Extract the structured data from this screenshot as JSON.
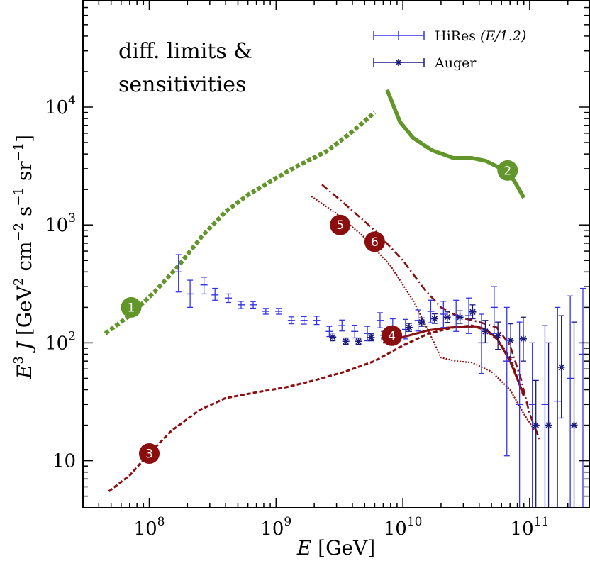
{
  "chart_data": {
    "type": "line",
    "xlabel": "E [GeV]",
    "ylabel": "E³ J [GeV² cm⁻² s⁻¹ sr⁻¹]",
    "x_scale": "log",
    "y_scale": "log",
    "xlim": [
      30000000,
      300000000000
    ],
    "ylim": [
      4,
      70000
    ],
    "x_ticks": [
      {
        "value": 100000000,
        "base": "10",
        "exp": "8"
      },
      {
        "value": 1000000000,
        "base": "10",
        "exp": "9"
      },
      {
        "value": 10000000000,
        "base": "10",
        "exp": "10"
      },
      {
        "value": 100000000000,
        "base": "10",
        "exp": "11"
      }
    ],
    "y_ticks": [
      {
        "value": 10,
        "base": "10",
        "exp": ""
      },
      {
        "value": 100,
        "base": "10",
        "exp": "2"
      },
      {
        "value": 1000,
        "base": "10",
        "exp": "3"
      },
      {
        "value": 10000,
        "base": "10",
        "exp": "4"
      }
    ],
    "annotation": [
      "diff. limits &",
      "sensitivities"
    ],
    "legend": {
      "placement": "top-right",
      "entries": [
        {
          "label_main": "HiRes ",
          "label_math": "(E/1.2)",
          "color": "#3333ee",
          "marker": "plus"
        },
        {
          "label_main": "Auger",
          "label_math": "",
          "color": "#1a1a80",
          "marker": "star"
        }
      ]
    },
    "curves": [
      {
        "id": "1",
        "color": "#62952a",
        "style": "dotted-thick",
        "x": [
          45000000,
          70000000,
          110000000,
          170000000,
          260000000,
          400000000,
          600000000,
          1000000000,
          1500000000,
          2500000000,
          4000000000,
          6000000000
        ],
        "y": [
          120,
          170,
          270,
          450,
          800,
          1300,
          1800,
          2500,
          3200,
          4200,
          6200,
          9000
        ]
      },
      {
        "id": "2",
        "color": "#62952a",
        "style": "solid-thick",
        "x": [
          7500000000,
          9500000000,
          12000000000,
          17000000000,
          25000000000,
          35000000000,
          45000000000,
          60000000000,
          75000000000,
          90000000000
        ],
        "y": [
          14000,
          7500,
          5500,
          4300,
          3700,
          3700,
          3500,
          3000,
          2400,
          1700
        ]
      },
      {
        "id": "3",
        "color": "#8b0e0e",
        "style": "dashed",
        "x": [
          48000000,
          70000000,
          100000000,
          150000000,
          250000000,
          400000000,
          700000000,
          1200000000,
          2000000000,
          3500000000,
          6000000000,
          10000000000,
          16000000000,
          25000000000,
          35000000000,
          45000000000,
          55000000000,
          70000000000,
          90000000000
        ],
        "y": [
          5.5,
          7.5,
          11.5,
          18,
          27,
          34,
          38,
          42,
          48,
          57,
          70,
          95,
          120,
          135,
          140,
          128,
          108,
          75,
          35
        ]
      },
      {
        "id": "4",
        "color": "#8b0e0e",
        "style": "solid",
        "x": [
          7000000000,
          9000000000,
          12000000000,
          16000000000,
          22000000000,
          30000000000,
          38000000000,
          45000000000,
          55000000000,
          70000000000,
          90000000000
        ],
        "y": [
          100,
          108,
          118,
          128,
          134,
          137,
          138,
          130,
          110,
          70,
          36
        ]
      },
      {
        "id": "5",
        "color": "#8b0e0e",
        "style": "dotted",
        "x": [
          1900000000,
          3000000000,
          5000000000,
          8000000000,
          12000000000,
          16000000000,
          20000000000,
          26000000000,
          35000000000,
          50000000000,
          70000000000,
          90000000000,
          110000000000
        ],
        "y": [
          1750,
          1250,
          780,
          450,
          230,
          125,
          75,
          70,
          68,
          57,
          40,
          25,
          18
        ]
      },
      {
        "id": "6",
        "color": "#8b0e0e",
        "style": "dashdot",
        "x": [
          2300000000,
          3500000000,
          6000000000,
          10000000000,
          15000000000,
          20000000000,
          28000000000,
          40000000000,
          55000000000,
          70000000000,
          85000000000,
          100000000000,
          120000000000
        ],
        "y": [
          2200,
          1500,
          900,
          500,
          280,
          200,
          165,
          150,
          135,
          95,
          50,
          25,
          15
        ]
      }
    ],
    "curve_markers": [
      {
        "label": "1",
        "x": 72000000,
        "y": 200,
        "color": "#62952a"
      },
      {
        "label": "2",
        "x": 67000000000,
        "y": 2900,
        "color": "#62952a"
      },
      {
        "label": "3",
        "x": 100000000,
        "y": 11.5,
        "color": "#8b0e0e"
      },
      {
        "label": "4",
        "x": 8200000000,
        "y": 115,
        "color": "#8b0e0e"
      },
      {
        "label": "5",
        "x": 3200000000,
        "y": 1000,
        "color": "#8b0e0e"
      },
      {
        "label": "6",
        "x": 6000000000,
        "y": 720,
        "color": "#8b0e0e"
      }
    ],
    "series": [
      {
        "name": "HiRes (E/1.2)",
        "color": "#3333ee",
        "marker": "plus",
        "points": [
          {
            "x": 170000000,
            "y": 400,
            "lo": 270,
            "hi": 560
          },
          {
            "x": 210000000,
            "y": 260,
            "lo": 200,
            "hi": 340
          },
          {
            "x": 270000000,
            "y": 310,
            "lo": 260,
            "hi": 360
          },
          {
            "x": 330000000,
            "y": 255,
            "lo": 230,
            "hi": 290
          },
          {
            "x": 420000000,
            "y": 240,
            "lo": 220,
            "hi": 260
          },
          {
            "x": 530000000,
            "y": 210,
            "lo": 195,
            "hi": 225
          },
          {
            "x": 660000000,
            "y": 210,
            "lo": 197,
            "hi": 224
          },
          {
            "x": 830000000,
            "y": 185,
            "lo": 175,
            "hi": 196
          },
          {
            "x": 1050000000,
            "y": 185,
            "lo": 175,
            "hi": 196
          },
          {
            "x": 1320000000,
            "y": 155,
            "lo": 145,
            "hi": 166
          },
          {
            "x": 1660000000,
            "y": 155,
            "lo": 144,
            "hi": 167
          },
          {
            "x": 2090000000,
            "y": 155,
            "lo": 143,
            "hi": 168
          },
          {
            "x": 2630000000,
            "y": 125,
            "lo": 113,
            "hi": 138
          },
          {
            "x": 3310000000,
            "y": 140,
            "lo": 126,
            "hi": 156
          },
          {
            "x": 4170000000,
            "y": 125,
            "lo": 110,
            "hi": 141
          },
          {
            "x": 5250000000,
            "y": 120,
            "lo": 104,
            "hi": 138
          },
          {
            "x": 6610000000,
            "y": 155,
            "lo": 134,
            "hi": 180
          },
          {
            "x": 8320000000,
            "y": 135,
            "lo": 114,
            "hi": 160
          },
          {
            "x": 10500000000,
            "y": 130,
            "lo": 108,
            "hi": 158
          },
          {
            "x": 13200000000,
            "y": 155,
            "lo": 126,
            "hi": 190
          },
          {
            "x": 16600000000,
            "y": 185,
            "lo": 148,
            "hi": 230
          },
          {
            "x": 20900000000,
            "y": 175,
            "lo": 135,
            "hi": 225
          },
          {
            "x": 26300000000,
            "y": 170,
            "lo": 125,
            "hi": 230
          },
          {
            "x": 33100000000,
            "y": 170,
            "lo": 120,
            "hi": 240
          },
          {
            "x": 41700000000,
            "y": 100,
            "lo": 55,
            "hi": 175
          },
          {
            "x": 52500000000,
            "y": 200,
            "lo": 120,
            "hi": 300
          },
          {
            "x": 66100000000,
            "y": 70,
            "lo": 11,
            "hi": 200
          },
          {
            "x": 83200000000,
            "y": 30,
            "lo": 4,
            "hi": 150
          },
          {
            "x": 105000000000,
            "y": 30,
            "lo": 4,
            "hi": 100
          },
          {
            "x": 132000000000,
            "y": 30,
            "lo": 4,
            "hi": 140
          },
          {
            "x": 166000000000,
            "y": 32,
            "lo": 4,
            "hi": 200
          },
          {
            "x": 209000000000,
            "y": 50,
            "lo": 4,
            "hi": 250
          },
          {
            "x": 263000000000,
            "y": 80,
            "lo": 4,
            "hi": 290
          }
        ]
      },
      {
        "name": "Auger",
        "color": "#1a1a80",
        "marker": "star",
        "points": [
          {
            "x": 2800000000,
            "y": 112,
            "lo": 104,
            "hi": 121
          },
          {
            "x": 3550000000,
            "y": 103,
            "lo": 97,
            "hi": 110
          },
          {
            "x": 4470000000,
            "y": 103,
            "lo": 97,
            "hi": 110
          },
          {
            "x": 5620000000,
            "y": 111,
            "lo": 104,
            "hi": 119
          },
          {
            "x": 7080000000,
            "y": 116,
            "lo": 108,
            "hi": 125
          },
          {
            "x": 8910000000,
            "y": 120,
            "lo": 112,
            "hi": 129
          },
          {
            "x": 11200000000,
            "y": 135,
            "lo": 125,
            "hi": 146
          },
          {
            "x": 14100000000,
            "y": 150,
            "lo": 138,
            "hi": 163
          },
          {
            "x": 17800000000,
            "y": 160,
            "lo": 146,
            "hi": 176
          },
          {
            "x": 22400000000,
            "y": 165,
            "lo": 149,
            "hi": 183
          },
          {
            "x": 28200000000,
            "y": 165,
            "lo": 146,
            "hi": 187
          },
          {
            "x": 35500000000,
            "y": 183,
            "lo": 160,
            "hi": 210
          },
          {
            "x": 44700000000,
            "y": 125,
            "lo": 100,
            "hi": 155
          },
          {
            "x": 56200000000,
            "y": 115,
            "lo": 88,
            "hi": 150
          },
          {
            "x": 70800000000,
            "y": 105,
            "lo": 75,
            "hi": 145
          },
          {
            "x": 89100000000,
            "y": 108,
            "lo": 70,
            "hi": 165
          },
          {
            "x": 112000000000,
            "y": 20,
            "lo": 4,
            "hi": 48
          },
          {
            "x": 141000000000,
            "y": 20,
            "lo": 4,
            "hi": 100
          },
          {
            "x": 178000000000,
            "y": 62,
            "lo": 23,
            "hi": 170
          },
          {
            "x": 224000000000,
            "y": 20,
            "lo": 4,
            "hi": 150
          }
        ]
      }
    ]
  }
}
